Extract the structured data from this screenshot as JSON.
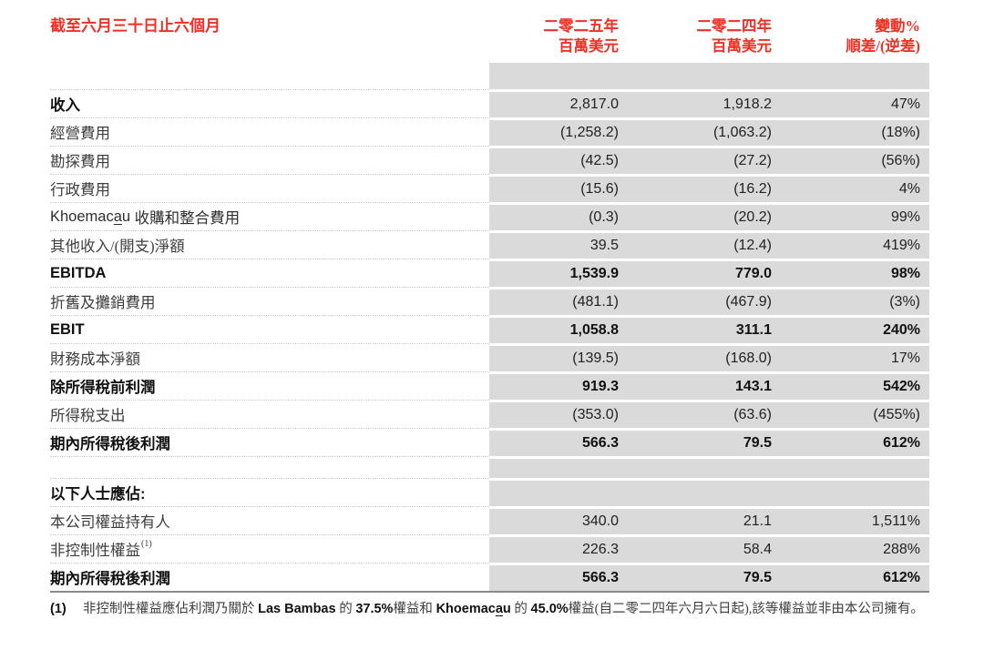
{
  "colors": {
    "accent_red": "#EE3124",
    "cell_gray": "#DADADA",
    "rule_gray": "#8A8A8A"
  },
  "table": {
    "title": "截至六月三十日止六個月",
    "columns": [
      {
        "line1": "二零二五年",
        "line2": "百萬美元"
      },
      {
        "line1": "二零二四年",
        "line2": "百萬美元"
      },
      {
        "line1": "變動%",
        "line2": "順差/(逆差)"
      }
    ],
    "rows": [
      {
        "type": "spacer"
      },
      {
        "type": "data",
        "label": "收入",
        "v2025": "2,817.0",
        "v2024": "1,918.2",
        "change": "47%"
      },
      {
        "type": "data",
        "label": "經營費用",
        "v2025": "(1,258.2)",
        "v2024": "(1,063.2)",
        "change": "(18%)"
      },
      {
        "type": "data",
        "label": "勘探費用",
        "v2025": "(42.5)",
        "v2024": "(27.2)",
        "change": "(56%)"
      },
      {
        "type": "data",
        "label": "行政費用",
        "v2025": "(15.6)",
        "v2024": "(16.2)",
        "change": "4%"
      },
      {
        "type": "data",
        "label_latin": "Khoemac",
        "label_latin_underlined": "a",
        "label_latin_end": "u",
        "label": " 收購和整合費用",
        "v2025": "(0.3)",
        "v2024": "(20.2)",
        "change": "99%"
      },
      {
        "type": "data",
        "label": "其他收入/(開支)淨額",
        "v2025": "39.5",
        "v2024": "(12.4)",
        "change": "419%"
      },
      {
        "type": "data",
        "label": "EBITDA",
        "v2025": "1,539.9",
        "v2024": "779.0",
        "change": "98%"
      },
      {
        "type": "data",
        "label": "折舊及攤銷費用",
        "v2025": "(481.1)",
        "v2024": "(467.9)",
        "change": "(3%)"
      },
      {
        "type": "data",
        "label": "EBIT",
        "v2025": "1,058.8",
        "v2024": "311.1",
        "change": "240%"
      },
      {
        "type": "data",
        "label": "財務成本淨額",
        "v2025": "(139.5)",
        "v2024": "(168.0)",
        "change": "17%"
      },
      {
        "type": "data",
        "label": "除所得稅前利潤",
        "v2025": "919.3",
        "v2024": "143.1",
        "change": "542%"
      },
      {
        "type": "data",
        "label": "所得稅支出",
        "v2025": "(353.0)",
        "v2024": "(63.6)",
        "change": "(455%)"
      },
      {
        "type": "data",
        "label": "期內所得稅後利潤",
        "v2025": "566.3",
        "v2024": "79.5",
        "change": "612%"
      },
      {
        "type": "spacer"
      },
      {
        "type": "section",
        "label": "以下人士應佔:"
      },
      {
        "type": "data",
        "label": "本公司權益持有人",
        "v2025": "340.0",
        "v2024": "21.1",
        "change": "1,511%"
      },
      {
        "type": "data",
        "label": "非控制性權益",
        "label_sup": "(1)",
        "v2025": "226.3",
        "v2024": "58.4",
        "change": "288%"
      },
      {
        "type": "data",
        "label": "期內所得稅後利潤",
        "v2025": "566.3",
        "v2024": "79.5",
        "change": "612%"
      }
    ]
  },
  "footnote": {
    "marker": "(1)",
    "part1": "非控制性權益應佔利潤乃關於 ",
    "bold1": "Las Bambas",
    "part2": " 的 ",
    "bold2": "37.5%",
    "part3": "權益和 ",
    "bold3_pre": "Khoemac",
    "bold3_underlined": "a",
    "bold3_end": "u",
    "part4": " 的 ",
    "bold4": "45.0%",
    "part5": "權益(自二零二四年六月六日起),該等權益並非由本公司擁有。"
  }
}
